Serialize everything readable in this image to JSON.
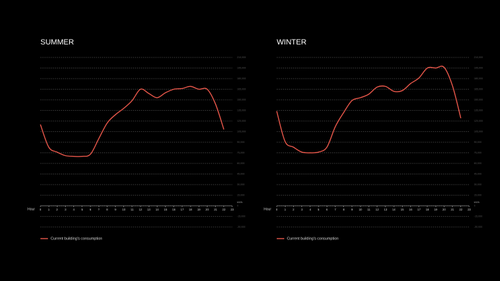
{
  "chart_data": [
    {
      "type": "line",
      "title": "SUMMER",
      "x_label": "Hour",
      "y_unit": "kWh",
      "x": [
        0,
        1,
        2,
        3,
        4,
        5,
        6,
        7,
        8,
        9,
        10,
        11,
        12,
        13,
        14,
        15,
        16,
        17,
        18,
        19,
        20,
        21,
        22
      ],
      "series": [
        {
          "name": "Current building's consumption",
          "color": "#e8574a",
          "values": [
            115000,
            83000,
            76000,
            71000,
            70000,
            70000,
            73000,
            95000,
            117000,
            129000,
            138000,
            149000,
            165000,
            159000,
            153000,
            160000,
            165000,
            166000,
            169000,
            165000,
            165000,
            144000,
            108000
          ]
        }
      ],
      "xlim": [
        0,
        23
      ],
      "xticks": [
        0,
        1,
        2,
        3,
        4,
        5,
        6,
        7,
        8,
        9,
        10,
        11,
        12,
        13,
        14,
        15,
        16,
        17,
        18,
        19,
        20,
        21,
        22,
        23
      ],
      "ylim": [
        -30000,
        210000
      ],
      "yticks": [
        {
          "value": 210000,
          "label": "210,000"
        },
        {
          "value": 195000,
          "label": "195,000"
        },
        {
          "value": 180000,
          "label": "180,000"
        },
        {
          "value": 165000,
          "label": "165,000"
        },
        {
          "value": 150000,
          "label": "150,000"
        },
        {
          "value": 135000,
          "label": "135,000"
        },
        {
          "value": 120000,
          "label": "120,000"
        },
        {
          "value": 105000,
          "label": "105,000"
        },
        {
          "value": 90000,
          "label": "90,000"
        },
        {
          "value": 75000,
          "label": "75,000"
        },
        {
          "value": 60000,
          "label": "60,000"
        },
        {
          "value": 45000,
          "label": "45,000"
        },
        {
          "value": 30000,
          "label": "30,000"
        },
        {
          "value": 15000,
          "label": "15,000"
        },
        0,
        {
          "value": -15000,
          "label": "-15,000"
        },
        {
          "value": -30000,
          "label": "-30,000"
        }
      ],
      "grid": true
    },
    {
      "type": "line",
      "title": "WINTER",
      "x_label": "Hour",
      "y_unit": "kWh",
      "x": [
        0,
        1,
        2,
        3,
        4,
        5,
        6,
        7,
        8,
        9,
        10,
        11,
        12,
        13,
        14,
        15,
        16,
        17,
        18,
        19,
        20,
        21,
        22
      ],
      "series": [
        {
          "name": "Current building's consumption",
          "color": "#e8574a",
          "values": [
            134000,
            91000,
            83000,
            76000,
            75000,
            76000,
            83000,
            112000,
            132000,
            149000,
            153000,
            158000,
            168000,
            169000,
            162000,
            163000,
            173000,
            181000,
            195000,
            195000,
            196000,
            170000,
            124000
          ]
        }
      ],
      "xlim": [
        0,
        23
      ],
      "xticks": [
        0,
        1,
        2,
        3,
        4,
        5,
        6,
        7,
        8,
        9,
        10,
        11,
        12,
        13,
        14,
        15,
        16,
        17,
        18,
        19,
        20,
        21,
        22,
        23
      ],
      "ylim": [
        -30000,
        210000
      ],
      "yticks": [
        {
          "value": 210000,
          "label": "210,000"
        },
        {
          "value": 195000,
          "label": "195,000"
        },
        {
          "value": 180000,
          "label": "180,000"
        },
        {
          "value": 165000,
          "label": "165,000"
        },
        {
          "value": 150000,
          "label": "150,000"
        },
        {
          "value": 135000,
          "label": "135,000"
        },
        {
          "value": 120000,
          "label": "120,000"
        },
        {
          "value": 105000,
          "label": "105,000"
        },
        {
          "value": 90000,
          "label": "90,000"
        },
        {
          "value": 75000,
          "label": "75,000"
        },
        {
          "value": 60000,
          "label": "60,000"
        },
        {
          "value": 45000,
          "label": "45,000"
        },
        {
          "value": 30000,
          "label": "30,000"
        },
        {
          "value": 15000,
          "label": "15,000"
        },
        0,
        {
          "value": -15000,
          "label": "-15,000"
        },
        {
          "value": -30000,
          "label": "-30,000"
        }
      ],
      "grid": true
    }
  ]
}
